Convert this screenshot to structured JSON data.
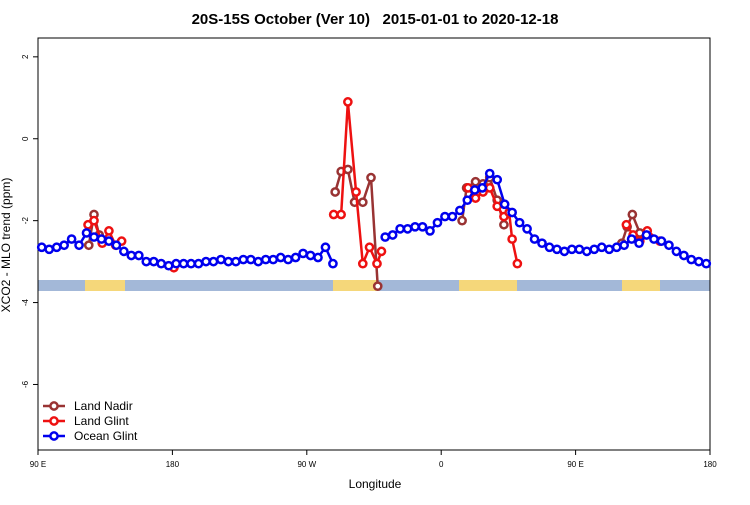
{
  "chart_data": {
    "type": "line",
    "title": "20S-15S October (Ver 10)   2015-01-01 to 2020-12-18",
    "x_label": "Longitude",
    "y_label": "XCO2 - MLO trend (ppm)",
    "xlim": [
      90,
      540
    ],
    "ylim": [
      -7.6,
      2.46
    ],
    "xticks": [
      {
        "value": 90,
        "label": "90 E"
      },
      {
        "value": 180,
        "label": "180"
      },
      {
        "value": 270,
        "label": "90 W"
      },
      {
        "value": 360,
        "label": "0"
      },
      {
        "value": 450,
        "label": "90 E"
      },
      {
        "value": 540,
        "label": "180"
      }
    ],
    "yticks": [
      -6,
      -4,
      -2,
      0,
      2
    ],
    "grid": false,
    "legend": "bottom-left",
    "series": [
      {
        "name": "Land Nadir",
        "color": "#993333",
        "x": [
          124,
          127.5,
          131,
          null,
          289,
          293,
          297.5,
          302,
          307.5,
          313,
          317.5,
          null,
          374,
          377,
          383,
          388,
          392.5,
          397.5,
          402,
          null,
          481,
          484.5,
          488,
          493
        ],
        "values": [
          -2.6,
          -1.85,
          -2.35,
          null,
          -1.3,
          -0.8,
          -0.75,
          -1.55,
          -1.55,
          -0.95,
          -3.6,
          null,
          -2.0,
          -1.2,
          -1.05,
          -1.1,
          -0.95,
          -1.5,
          -2.1,
          null,
          -2.55,
          -2.15,
          -1.85,
          -2.3
        ]
      },
      {
        "name": "Land Glint",
        "color": "#ee1111",
        "x": [
          123.5,
          127.5,
          133,
          137.5,
          142,
          146,
          null,
          181,
          null,
          288,
          293,
          297.5,
          303,
          307.5,
          312,
          317,
          320,
          null,
          378,
          383,
          388,
          392.5,
          397.5,
          402,
          405.5,
          407.5,
          411,
          null,
          484,
          488.5,
          493,
          498,
          506.5
        ],
        "values": [
          -2.1,
          -2.0,
          -2.55,
          -2.25,
          -2.6,
          -2.5,
          null,
          -3.15,
          null,
          -1.85,
          -1.85,
          0.9,
          -1.3,
          -3.05,
          -2.65,
          -3.05,
          -2.75,
          null,
          -1.2,
          -1.45,
          -1.3,
          -1.2,
          -1.65,
          -1.9,
          -1.8,
          -2.45,
          -3.05,
          null,
          -2.1,
          -2.35,
          -2.5,
          -2.25,
          -2.5
        ]
      },
      {
        "name": "Ocean Glint",
        "color": "#0000ee",
        "x": [
          92.5,
          97.5,
          102.5,
          107.5,
          112.5,
          117.5,
          122.5,
          127.5,
          132.5,
          137.5,
          142.5,
          147.5,
          152.5,
          157.5,
          162.5,
          167.5,
          172.5,
          177.5,
          182.5,
          187.5,
          192.5,
          197.5,
          202.5,
          207.5,
          212.5,
          217.5,
          222.5,
          227.5,
          232.5,
          237.5,
          242.5,
          247.5,
          252.5,
          257.5,
          262.5,
          267.5,
          272.5,
          277.5,
          282.5,
          287.5,
          null,
          322.5,
          327.5,
          332.5,
          337.5,
          342.5,
          347.5,
          352.5,
          357.5,
          362.5,
          367.5,
          372.5,
          377.5,
          382.5,
          387.5,
          392.5,
          397.5,
          402.5,
          407.5,
          412.5,
          417.5,
          422.5,
          427.5,
          432.5,
          437.5,
          442.5,
          447.5,
          452.5,
          457.5,
          462.5,
          467.5,
          472.5,
          477.5,
          482.5,
          487.5,
          492.5,
          497.5,
          502.5,
          507.5,
          512.5,
          517.5,
          522.5,
          527.5,
          532.5,
          537.5
        ],
        "values": [
          -2.65,
          -2.7,
          -2.65,
          -2.6,
          -2.45,
          -2.6,
          -2.3,
          -2.4,
          -2.45,
          -2.5,
          -2.6,
          -2.75,
          -2.85,
          -2.85,
          -3.0,
          -3.0,
          -3.05,
          -3.1,
          -3.05,
          -3.05,
          -3.05,
          -3.05,
          -3.0,
          -3.0,
          -2.95,
          -3.0,
          -3.0,
          -2.95,
          -2.95,
          -3.0,
          -2.95,
          -2.95,
          -2.9,
          -2.95,
          -2.9,
          -2.8,
          -2.85,
          -2.9,
          -2.65,
          -3.05,
          null,
          -2.4,
          -2.35,
          -2.2,
          -2.2,
          -2.15,
          -2.15,
          -2.25,
          -2.05,
          -1.9,
          -1.9,
          -1.75,
          -1.5,
          -1.25,
          -1.2,
          -0.85,
          -1.0,
          -1.6,
          -1.8,
          -2.05,
          -2.2,
          -2.45,
          -2.55,
          -2.65,
          -2.7,
          -2.75,
          -2.7,
          -2.7,
          -2.75,
          -2.7,
          -2.65,
          -2.7,
          -2.65,
          -2.6,
          -2.45,
          -2.55,
          -2.35,
          -2.45,
          -2.5,
          -2.6,
          -2.75,
          -2.85,
          -2.95,
          -3.0,
          -3.05
        ]
      }
    ]
  }
}
